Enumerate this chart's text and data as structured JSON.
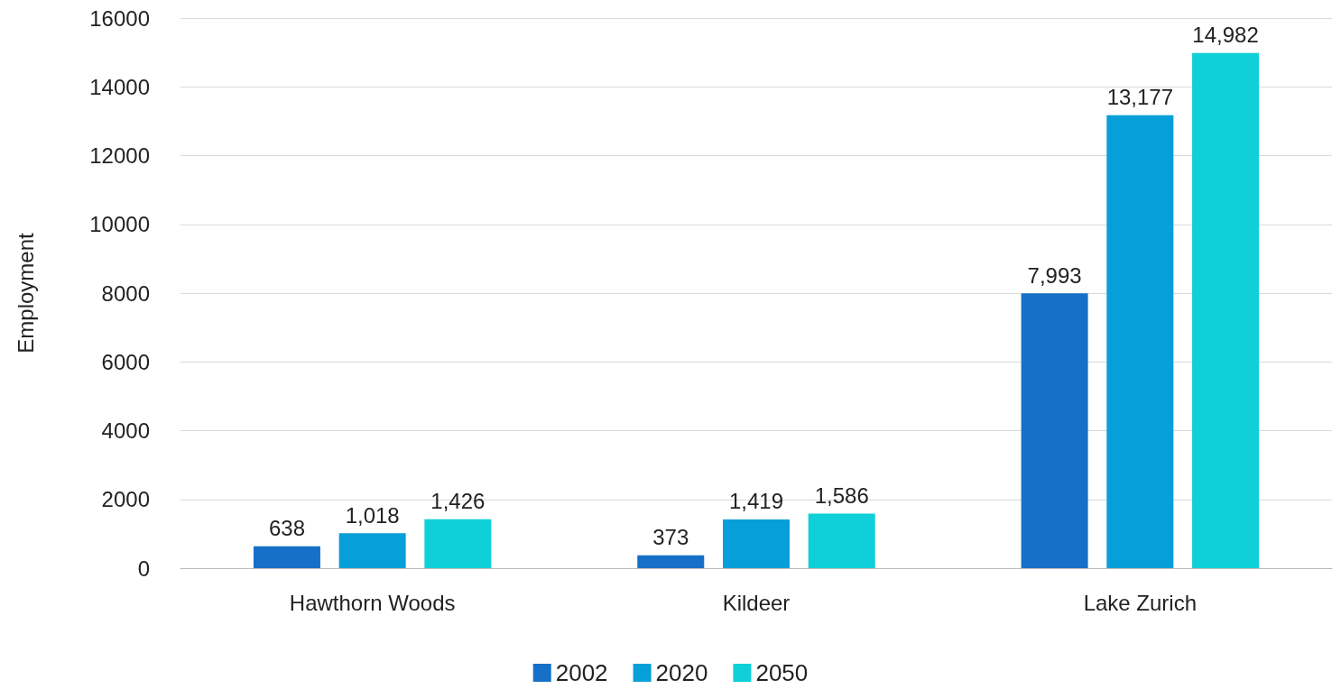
{
  "chart_data": {
    "type": "bar",
    "ylabel": "Employment",
    "categories": [
      "Hawthorn Woods",
      "Kildeer",
      "Lake Zurich"
    ],
    "series": [
      {
        "name": "2002",
        "color": "#1670c8",
        "values": [
          638,
          373,
          7993
        ],
        "value_labels": [
          "638",
          "373",
          "7,993"
        ]
      },
      {
        "name": "2020",
        "color": "#079fd9",
        "values": [
          1018,
          1419,
          13177
        ],
        "value_labels": [
          "1,018",
          "1,419",
          "13,177"
        ]
      },
      {
        "name": "2050",
        "color": "#0fcfd9",
        "values": [
          1426,
          1586,
          14982
        ],
        "value_labels": [
          "1,426",
          "1,586",
          "14,982"
        ]
      }
    ],
    "ylim": [
      0,
      16000
    ],
    "yticks": [
      0,
      2000,
      4000,
      6000,
      8000,
      10000,
      12000,
      14000,
      16000
    ],
    "grid": "y",
    "legend": "bottom"
  }
}
